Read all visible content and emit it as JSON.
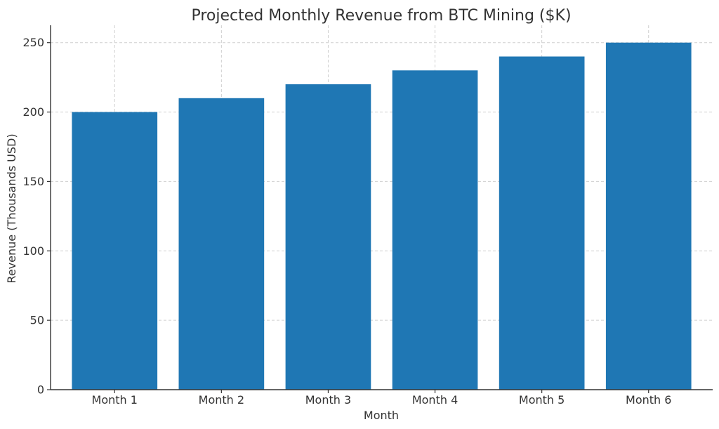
{
  "chart_data": {
    "type": "bar",
    "title": "Projected Monthly Revenue from BTC Mining ($K)",
    "xlabel": "Month",
    "ylabel": "Revenue (Thousands USD)",
    "categories": [
      "Month 1",
      "Month 2",
      "Month 3",
      "Month 4",
      "Month 5",
      "Month 6"
    ],
    "values": [
      200,
      210,
      220,
      230,
      240,
      250
    ],
    "ylim": [
      0,
      262.5
    ],
    "yticks": [
      0,
      50,
      100,
      150,
      200,
      250
    ],
    "grid": true,
    "bar_color": "#1f77b4"
  }
}
